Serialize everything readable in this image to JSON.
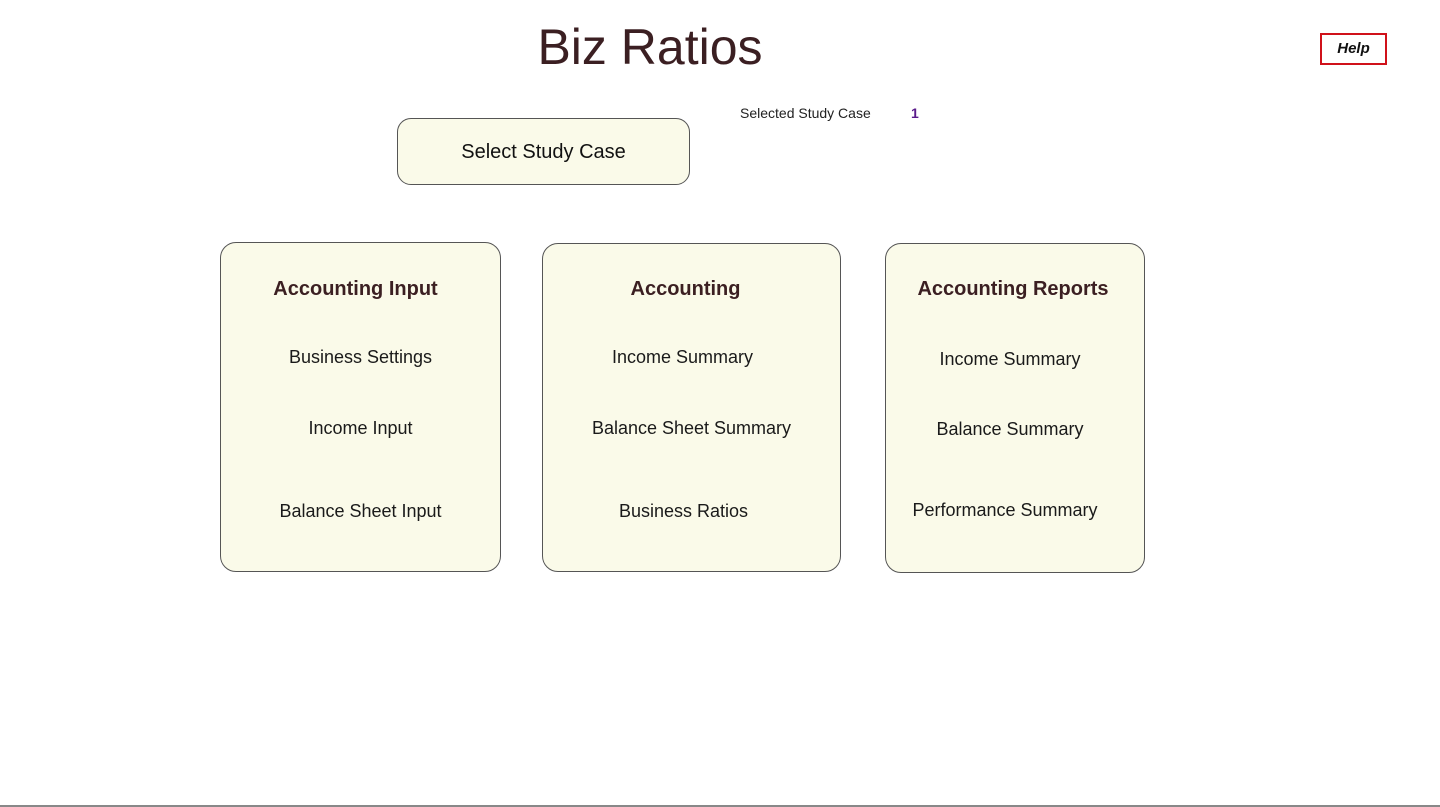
{
  "header": {
    "title": "Biz Ratios",
    "help_label": "Help"
  },
  "study_case": {
    "label": "Selected Study Case",
    "value": "1",
    "select_button": "Select Study Case"
  },
  "cards": [
    {
      "title": "Accounting Input",
      "items": [
        "Business Settings",
        "Income Input",
        "Balance Sheet Input"
      ]
    },
    {
      "title": "Accounting",
      "items": [
        "Income Summary",
        "Balance Sheet Summary",
        "Business Ratios"
      ]
    },
    {
      "title": "Accounting Reports",
      "items": [
        "Income Summary",
        "Balance Summary",
        "Performance Summary"
      ]
    }
  ],
  "colors": {
    "title": "#3b1f22",
    "help_border": "#d0111a",
    "card_bg": "#fafae9",
    "study_case_value": "#5a1a8a"
  }
}
